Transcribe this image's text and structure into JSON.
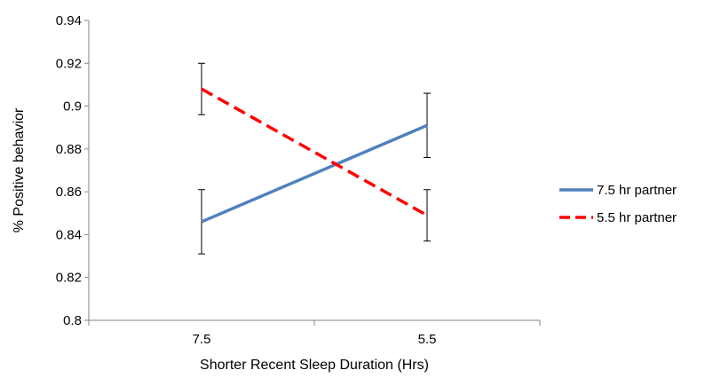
{
  "chart_data": {
    "type": "line",
    "xlabel": "Shorter Recent Sleep Duration (Hrs)",
    "ylabel": "% Positive behavior",
    "categories": [
      "7.5",
      "5.5"
    ],
    "ylim": [
      0.8,
      0.94
    ],
    "yticks": [
      "0.8",
      "0.82",
      "0.84",
      "0.86",
      "0.88",
      "0.9",
      "0.92",
      "0.94"
    ],
    "grid": false,
    "legend_position": "right",
    "series": [
      {
        "name": "7.5 hr partner",
        "values": [
          0.846,
          0.891
        ],
        "error_low": [
          0.831,
          0.876
        ],
        "error_high": [
          0.861,
          0.906
        ],
        "color": "#4f81bd",
        "dash": "solid"
      },
      {
        "name": "5.5 hr partner",
        "values": [
          0.908,
          0.849
        ],
        "error_low": [
          0.896,
          0.837
        ],
        "error_high": [
          0.92,
          0.861
        ],
        "color": "#ff0000",
        "dash": "dashed"
      }
    ]
  }
}
